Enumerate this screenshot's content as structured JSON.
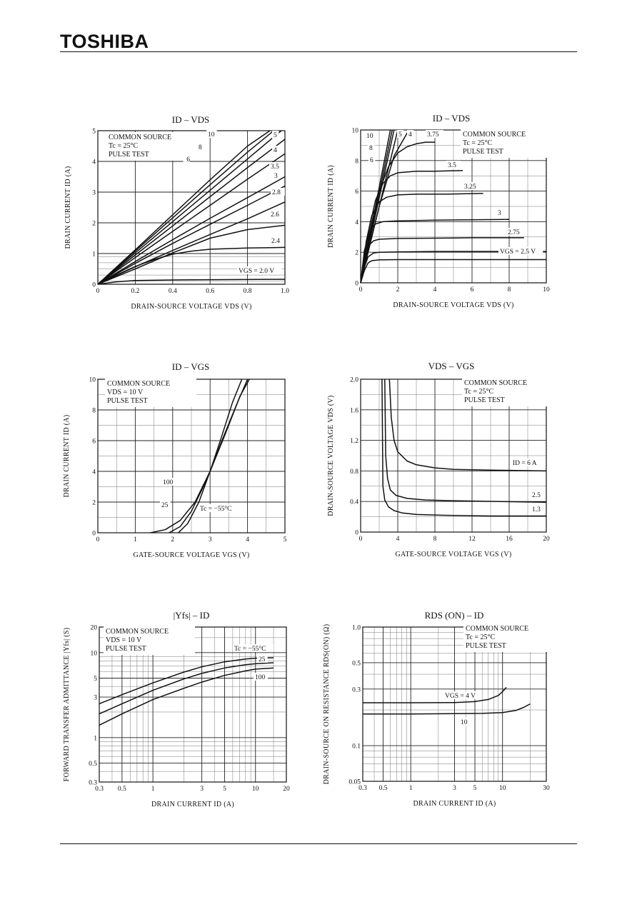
{
  "header": {
    "brand": "TOSHIBA"
  },
  "chart_data": [
    {
      "id": "c1",
      "type": "line",
      "title": "ID – VDS",
      "xlabel": "DRAIN-SOURCE VOLTAGE  VDS  (V)",
      "ylabel": "DRAIN CURRENT  ID  (A)",
      "xlim": [
        0,
        1.0
      ],
      "ylim": [
        0,
        5
      ],
      "xticks": [
        "0",
        "0.2",
        "0.4",
        "0.6",
        "0.8",
        "1.0"
      ],
      "yticks": [
        "0",
        "1",
        "2",
        "3",
        "4",
        "5"
      ],
      "notes": [
        "COMMON SOURCE",
        "Tc = 25°C",
        "PULSE TEST"
      ],
      "grid": true,
      "series": [
        {
          "name": "10",
          "x": [
            0,
            0.2,
            0.4,
            0.6,
            0.8,
            0.92
          ],
          "y": [
            0,
            1.12,
            2.26,
            3.4,
            4.5,
            5.0
          ]
        },
        {
          "name": "8",
          "x": [
            0,
            0.2,
            0.4,
            0.6,
            0.8,
            0.94
          ],
          "y": [
            0,
            1.08,
            2.16,
            3.24,
            4.3,
            5.0
          ]
        },
        {
          "name": "6",
          "x": [
            0,
            0.2,
            0.4,
            0.6,
            0.8,
            0.98
          ],
          "y": [
            0,
            1.02,
            2.04,
            3.06,
            4.08,
            5.0
          ]
        },
        {
          "name": "5",
          "x": [
            0,
            0.2,
            0.4,
            0.6,
            0.8,
            1.0
          ],
          "y": [
            0,
            0.95,
            1.9,
            2.85,
            3.8,
            4.72
          ]
        },
        {
          "name": "4",
          "x": [
            0,
            0.2,
            0.4,
            0.6,
            0.8,
            1.0
          ],
          "y": [
            0,
            0.87,
            1.72,
            2.57,
            3.42,
            4.25
          ]
        },
        {
          "name": "3.5",
          "x": [
            0,
            0.2,
            0.4,
            0.6,
            0.8,
            1.0
          ],
          "y": [
            0,
            0.74,
            1.45,
            2.15,
            2.82,
            3.5
          ]
        },
        {
          "name": "3",
          "x": [
            0,
            0.2,
            0.4,
            0.6,
            0.8,
            1.0
          ],
          "y": [
            0,
            0.68,
            1.33,
            1.95,
            2.57,
            3.2
          ]
        },
        {
          "name": "2.8",
          "x": [
            0,
            0.2,
            0.4,
            0.6,
            0.8,
            1.0
          ],
          "y": [
            0,
            0.57,
            1.1,
            1.62,
            2.13,
            2.68
          ]
        },
        {
          "name": "2.6",
          "x": [
            0,
            0.2,
            0.4,
            0.6,
            0.8,
            1.0
          ],
          "y": [
            0,
            0.5,
            1.02,
            1.5,
            1.78,
            1.92
          ]
        },
        {
          "name": "2.4",
          "x": [
            0,
            0.1,
            0.2,
            0.3,
            0.4,
            0.5,
            0.6,
            0.8,
            1.0
          ],
          "y": [
            0,
            0.3,
            0.58,
            0.8,
            0.98,
            1.08,
            1.14,
            1.18,
            1.2
          ]
        },
        {
          "name": "VGS = 2.0 V",
          "x": [
            0,
            0.1,
            0.2,
            0.4,
            0.6,
            1.0
          ],
          "y": [
            0,
            0.08,
            0.12,
            0.14,
            0.15,
            0.16
          ]
        }
      ],
      "curve_labels": [
        "10",
        "8",
        "6",
        "5",
        "4",
        "3.5",
        "3",
        "2.8",
        "2.6",
        "2.4",
        "VGS = 2.0 V"
      ]
    },
    {
      "id": "c2",
      "type": "line",
      "title": "ID – VDS",
      "xlabel": "DRAIN-SOURCE VOLTAGE  VDS  (V)",
      "ylabel": "DRAIN CURRENT  ID  (A)",
      "xlim": [
        0,
        10
      ],
      "ylim": [
        0,
        10
      ],
      "xticks": [
        "0",
        "2",
        "4",
        "6",
        "8",
        "10"
      ],
      "yticks": [
        "0",
        "2",
        "4",
        "6",
        "8",
        "10"
      ],
      "notes": [
        "COMMON SOURCE",
        "Tc = 25°C",
        "PULSE TEST"
      ],
      "grid": true,
      "series": [
        {
          "name": "10",
          "x": [
            0,
            1.6
          ],
          "y": [
            0,
            10
          ]
        },
        {
          "name": "8",
          "x": [
            0,
            1.7
          ],
          "y": [
            0,
            10
          ]
        },
        {
          "name": "6",
          "x": [
            0,
            1.8
          ],
          "y": [
            0,
            10
          ]
        },
        {
          "name": "5",
          "x": [
            0,
            2.0
          ],
          "y": [
            0,
            10
          ]
        },
        {
          "name": "4",
          "x": [
            0,
            1.0,
            1.8,
            2.6
          ],
          "y": [
            0,
            5.0,
            8.3,
            10
          ]
        },
        {
          "name": "3.75",
          "x": [
            0,
            0.5,
            1.0,
            1.5,
            2.0,
            2.5,
            3.0,
            3.5,
            4.0
          ],
          "y": [
            0,
            3.4,
            6.0,
            7.6,
            8.5,
            8.9,
            9.1,
            9.2,
            9.2
          ]
        },
        {
          "name": "3.5",
          "x": [
            0,
            0.4,
            0.8,
            1.2,
            1.6,
            2.0,
            3.0,
            4.0,
            5.5
          ],
          "y": [
            0,
            3.2,
            5.4,
            6.5,
            7.0,
            7.2,
            7.3,
            7.3,
            7.35
          ]
        },
        {
          "name": "3.25",
          "x": [
            0,
            0.3,
            0.6,
            1.0,
            1.4,
            2.0,
            3.0,
            4.5,
            6.6
          ],
          "y": [
            0,
            2.7,
            4.4,
            5.3,
            5.6,
            5.75,
            5.8,
            5.8,
            5.85
          ]
        },
        {
          "name": "3",
          "x": [
            0,
            0.2,
            0.5,
            0.8,
            1.2,
            2.0,
            4.0,
            6.0,
            8.0
          ],
          "y": [
            0,
            2.1,
            3.4,
            3.85,
            4.0,
            4.05,
            4.1,
            4.12,
            4.15
          ]
        },
        {
          "name": "2.75",
          "x": [
            0,
            0.2,
            0.4,
            0.7,
            1.0,
            2.0,
            4.0,
            6.0,
            8.8
          ],
          "y": [
            0,
            1.6,
            2.4,
            2.75,
            2.85,
            2.9,
            2.92,
            2.95,
            2.95
          ]
        },
        {
          "name": "VGS = 2.5 V",
          "x": [
            0,
            0.2,
            0.4,
            0.7,
            1.0,
            2.0,
            4.0,
            7.0,
            10.0
          ],
          "y": [
            0,
            1.0,
            1.7,
            1.95,
            2.0,
            2.02,
            2.05,
            2.05,
            2.05
          ]
        },
        {
          "name": "",
          "x": [
            0,
            0.2,
            0.4,
            0.6,
            1.0,
            2.0,
            5.0,
            10.0
          ],
          "y": [
            0,
            0.8,
            1.3,
            1.45,
            1.5,
            1.52,
            1.52,
            1.52
          ]
        }
      ],
      "curve_labels": [
        "10",
        "8",
        "6",
        "5",
        "4",
        "3.75",
        "3.5",
        "3.25",
        "3",
        "2.75",
        "VGS = 2.5 V"
      ]
    },
    {
      "id": "c3",
      "type": "line",
      "title": "ID – VGS",
      "xlabel": "GATE-SOURCE VOLTAGE  VGS  (V)",
      "ylabel": "DRAIN CURRENT  ID  (A)",
      "xlim": [
        0,
        5
      ],
      "ylim": [
        0,
        10
      ],
      "xticks": [
        "0",
        "1",
        "2",
        "3",
        "4",
        "5"
      ],
      "yticks": [
        "0",
        "2",
        "4",
        "6",
        "8",
        "10"
      ],
      "notes": [
        "COMMON SOURCE",
        "VDS = 10 V",
        "PULSE TEST"
      ],
      "grid": true,
      "series": [
        {
          "name": "100",
          "x": [
            1.4,
            1.8,
            2.2,
            2.6,
            3.0,
            3.4,
            3.8,
            4.05
          ],
          "y": [
            0,
            0.2,
            0.8,
            2.0,
            4.0,
            6.4,
            8.9,
            10
          ]
        },
        {
          "name": "25",
          "x": [
            1.9,
            2.2,
            2.5,
            2.8,
            3.0,
            3.3,
            3.7,
            4.0
          ],
          "y": [
            0,
            0.4,
            1.4,
            2.9,
            4.0,
            5.9,
            8.3,
            10
          ]
        },
        {
          "name": "Tc = −55°C",
          "x": [
            2.15,
            2.4,
            2.7,
            3.0,
            3.3,
            3.6,
            3.85
          ],
          "y": [
            0,
            0.6,
            2.0,
            4.0,
            6.2,
            8.5,
            10
          ]
        }
      ],
      "curve_labels": [
        "100",
        "25",
        "Tc = −55°C"
      ]
    },
    {
      "id": "c4",
      "type": "line",
      "title": "VDS – VGS",
      "xlabel": "GATE-SOURCE VOLTAGE  VGS  (V)",
      "ylabel": "DRAIN-SOURCE VOLTAGE  VDS  (V)",
      "xlim": [
        0,
        20
      ],
      "ylim": [
        0,
        2.0
      ],
      "xticks": [
        "0",
        "4",
        "8",
        "12",
        "16",
        "20"
      ],
      "yticks": [
        "0",
        "0.4",
        "0.8",
        "1.2",
        "1.6",
        "2.0"
      ],
      "notes": [
        "COMMON SOURCE",
        "Tc = 25°C",
        "PULSE TEST"
      ],
      "grid": true,
      "series": [
        {
          "name": "ID = 6 A",
          "x": [
            3.1,
            3.3,
            3.6,
            4.0,
            5.0,
            6.0,
            8.0,
            10.0,
            14.0,
            20.0
          ],
          "y": [
            2.0,
            1.5,
            1.2,
            1.05,
            0.93,
            0.88,
            0.84,
            0.82,
            0.81,
            0.8
          ]
        },
        {
          "name": "2.5",
          "x": [
            2.6,
            2.7,
            2.9,
            3.2,
            3.8,
            5.0,
            7.0,
            10.0,
            15.0,
            20.0
          ],
          "y": [
            2.0,
            1.0,
            0.7,
            0.55,
            0.48,
            0.44,
            0.42,
            0.41,
            0.4,
            0.39
          ]
        },
        {
          "name": "1.3",
          "x": [
            2.3,
            2.4,
            2.6,
            3.0,
            3.6,
            4.5,
            6.0,
            9.0,
            14.0,
            20.0
          ],
          "y": [
            2.0,
            0.6,
            0.42,
            0.33,
            0.28,
            0.25,
            0.23,
            0.22,
            0.21,
            0.21
          ]
        }
      ],
      "curve_labels": [
        "ID = 6 A",
        "2.5",
        "1.3"
      ]
    },
    {
      "id": "c5",
      "type": "line",
      "title": "|Yfs| – ID",
      "xlabel": "DRAIN CURRENT  ID  (A)",
      "ylabel": "FORWARD TRANSFER ADMITTANCE  |Yfs|  (S)",
      "xscale": "log",
      "yscale": "log",
      "xlim": [
        0.3,
        20
      ],
      "ylim": [
        0.3,
        20
      ],
      "xticks": [
        "0.3",
        "0.5",
        "1",
        "3",
        "5",
        "10",
        "20"
      ],
      "yticks": [
        "0.3",
        "0.5",
        "1",
        "3",
        "5",
        "10",
        "20"
      ],
      "notes": [
        "COMMON SOURCE",
        "VDS = 10 V",
        "PULSE TEST"
      ],
      "grid": true,
      "series": [
        {
          "name": "Tc = −55°C",
          "x": [
            0.3,
            0.5,
            1,
            2,
            3,
            5,
            8,
            10,
            15
          ],
          "y": [
            2.5,
            3.2,
            4.4,
            5.9,
            6.8,
            7.8,
            8.4,
            8.6,
            8.7
          ]
        },
        {
          "name": "25",
          "x": [
            0.3,
            0.5,
            1,
            2,
            3,
            5,
            8,
            10,
            15
          ],
          "y": [
            1.9,
            2.5,
            3.6,
            4.9,
            5.7,
            6.6,
            7.2,
            7.4,
            7.6
          ]
        },
        {
          "name": "100",
          "x": [
            0.3,
            0.5,
            1,
            2,
            3,
            5,
            8,
            10,
            15
          ],
          "y": [
            1.4,
            1.9,
            2.8,
            3.8,
            4.5,
            5.4,
            6.1,
            6.4,
            6.6
          ]
        }
      ],
      "curve_labels": [
        "Tc = −55°C",
        "25",
        "100"
      ]
    },
    {
      "id": "c6",
      "type": "line",
      "title": "RDS (ON) – ID",
      "xlabel": "DRAIN CURRENT  ID  (A)",
      "ylabel": "DRAIN-SOURCE ON RESISTANCE  RDS(ON)  (Ω)",
      "xscale": "log",
      "yscale": "log",
      "xlim": [
        0.3,
        30
      ],
      "ylim": [
        0.05,
        1.0
      ],
      "xticks": [
        "0.3",
        "0.5",
        "1",
        "3",
        "5",
        "10",
        "30"
      ],
      "yticks": [
        "0.05",
        "0.1",
        "0.3",
        "0.5",
        "1.0"
      ],
      "notes": [
        "COMMON SOURCE",
        "Tc = 25°C",
        "PULSE TEST"
      ],
      "grid": true,
      "series": [
        {
          "name": "VGS = 4 V",
          "x": [
            0.3,
            1,
            3,
            5,
            7,
            9,
            10,
            11
          ],
          "y": [
            0.23,
            0.23,
            0.231,
            0.235,
            0.245,
            0.265,
            0.285,
            0.31
          ]
        },
        {
          "name": "10",
          "x": [
            0.3,
            1,
            3,
            6,
            10,
            14,
            17,
            20
          ],
          "y": [
            0.185,
            0.185,
            0.186,
            0.187,
            0.19,
            0.198,
            0.21,
            0.225
          ]
        }
      ],
      "curve_labels": [
        "VGS = 4 V",
        "10"
      ]
    }
  ]
}
